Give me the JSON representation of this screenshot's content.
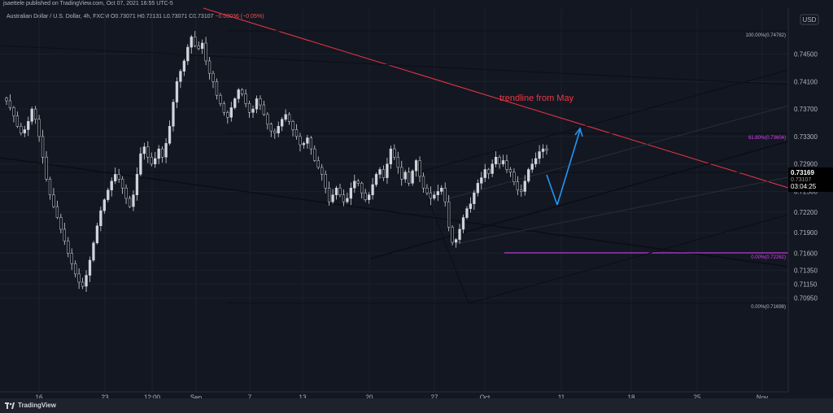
{
  "header": {
    "publisher": "jsaettele published on TradingView.com, Oct 07, 2021 16:55 UTC-5"
  },
  "legend": {
    "symbol": "Australian Dollar / U.S. Dollar, 4h, FXCM",
    "ohlc": "O0.73071 H0.73131 L0.73071 C0.73107",
    "change": "−0.00036 (−0.05%)"
  },
  "currency": "USD",
  "footer": {
    "brand": "TradingView"
  },
  "price_tag": {
    "price": "0.73169",
    "time": "03:04:25",
    "hidden": "0.73107"
  },
  "colors": {
    "background": "#131722",
    "candle": "#d1d4dc",
    "trendline_may": "#f23645",
    "fib_pink": "#e040fb",
    "projection": "#2196f3",
    "line": "#0c0e15"
  },
  "chart_data": {
    "type": "candlestick",
    "y_axis": {
      "ticks": [
        "0.74500",
        "0.74100",
        "0.73700",
        "0.73300",
        "0.72900",
        "0.72500",
        "0.72200",
        "0.71900",
        "0.71600",
        "0.71350",
        "0.71150",
        "0.70950"
      ],
      "range": [
        0.7085,
        0.7495
      ]
    },
    "x_axis": {
      "ticks": [
        "16",
        "23",
        "12:00",
        "Sep",
        "7",
        "13",
        "20",
        "27",
        "Oct",
        "11",
        "18",
        "25",
        "Nov"
      ]
    },
    "annotations": {
      "trendline_label": "trendline from May",
      "fib_100": "100.00%(0.74782)",
      "fib_618": "61.80%(0.73604)",
      "fib_0_pink": "0.00%(0.72262)",
      "fib_0": "0.00%(0.71698)"
    },
    "close_path": [
      0.7382,
      0.7372,
      0.736,
      0.7345,
      0.7335,
      0.734,
      0.7352,
      0.737,
      0.7355,
      0.733,
      0.73,
      0.7268,
      0.7245,
      0.7228,
      0.7212,
      0.7195,
      0.7178,
      0.716,
      0.7145,
      0.713,
      0.7118,
      0.7112,
      0.7128,
      0.715,
      0.7175,
      0.72,
      0.7222,
      0.7238,
      0.7252,
      0.7265,
      0.7275,
      0.7268,
      0.7255,
      0.724,
      0.7228,
      0.7245,
      0.7275,
      0.7305,
      0.7315,
      0.73,
      0.729,
      0.7298,
      0.7312,
      0.73,
      0.732,
      0.7345,
      0.738,
      0.741,
      0.7425,
      0.744,
      0.746,
      0.7475,
      0.7462,
      0.7458,
      0.7466,
      0.744,
      0.7422,
      0.741,
      0.739,
      0.7378,
      0.7365,
      0.7358,
      0.7372,
      0.7385,
      0.7398,
      0.7392,
      0.7378,
      0.7365,
      0.737,
      0.7385,
      0.7376,
      0.7362,
      0.7348,
      0.7338,
      0.7335,
      0.7345,
      0.7355,
      0.7362,
      0.7352,
      0.734,
      0.733,
      0.7318,
      0.732,
      0.7328,
      0.7312,
      0.7295,
      0.7285,
      0.7275,
      0.7255,
      0.7235,
      0.7245,
      0.7255,
      0.7245,
      0.7235,
      0.724,
      0.7255,
      0.7265,
      0.7262,
      0.7248,
      0.7238,
      0.7245,
      0.726,
      0.7275,
      0.7282,
      0.727,
      0.729,
      0.7312,
      0.73,
      0.7285,
      0.7268,
      0.7278,
      0.7262,
      0.728,
      0.7295,
      0.7272,
      0.7255,
      0.7248,
      0.724,
      0.7245,
      0.725,
      0.7255,
      0.7235,
      0.7198,
      0.7176,
      0.718,
      0.7195,
      0.7212,
      0.7225,
      0.7232,
      0.7248,
      0.7262,
      0.727,
      0.7282,
      0.7276,
      0.729,
      0.73,
      0.729,
      0.7295,
      0.7282,
      0.7278,
      0.7264,
      0.7252,
      0.725,
      0.7265,
      0.7282,
      0.729,
      0.7298,
      0.7308,
      0.7312,
      0.731
    ]
  }
}
